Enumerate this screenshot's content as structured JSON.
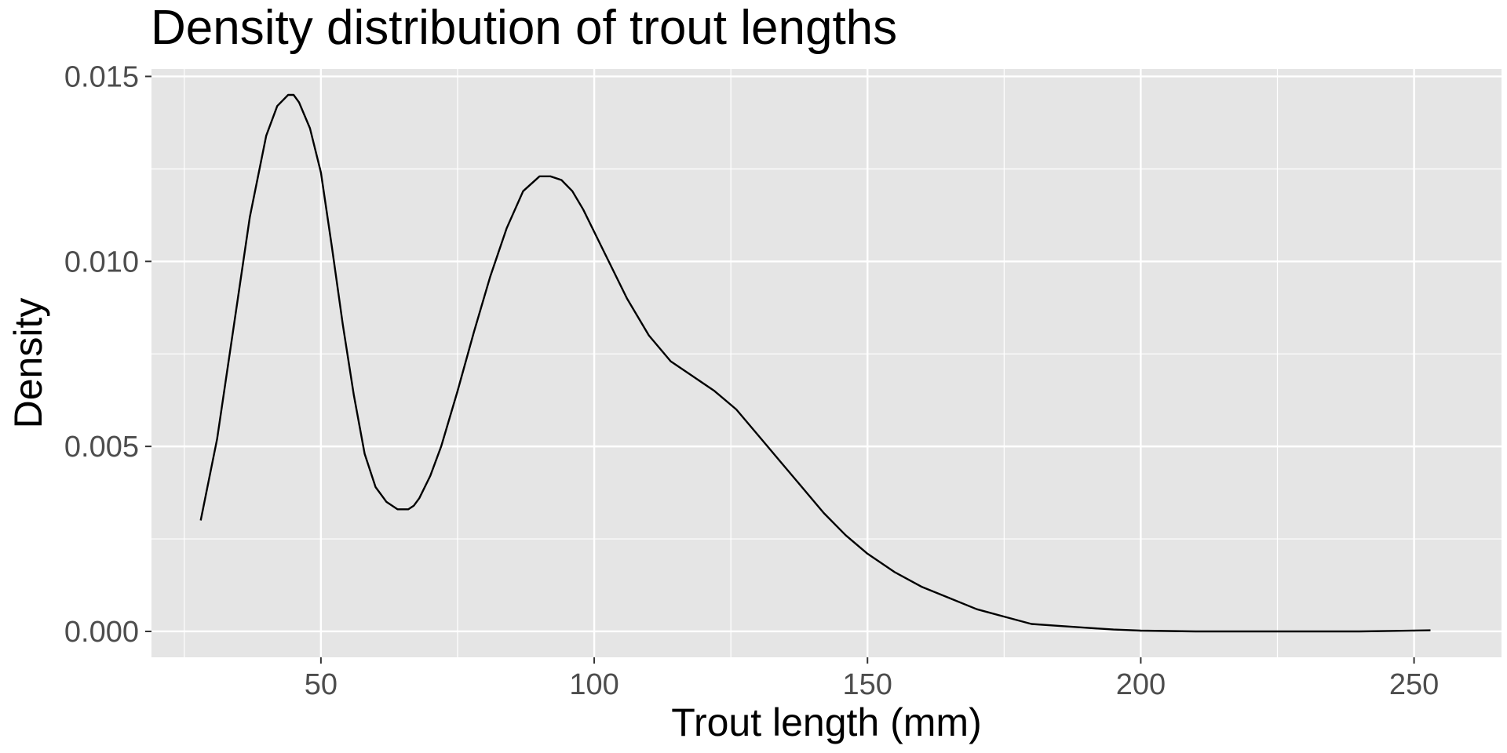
{
  "chart_data": {
    "type": "line",
    "title": "Density distribution of trout lengths",
    "xlabel": "Trout length (mm)",
    "ylabel": "Density",
    "xlim": [
      19,
      266
    ],
    "ylim": [
      -0.0007,
      0.0152
    ],
    "x_ticks": [
      50,
      100,
      150,
      200,
      250
    ],
    "x_tick_labels": [
      "50",
      "100",
      "150",
      "200",
      "250"
    ],
    "y_ticks": [
      0.0,
      0.005,
      0.01,
      0.015
    ],
    "y_tick_labels": [
      "0.000",
      "0.005",
      "0.010",
      "0.015"
    ],
    "grid": true,
    "series": [
      {
        "x": [
          28,
          31,
          34,
          37,
          40,
          42,
          44,
          45,
          46,
          48,
          50,
          52,
          54,
          56,
          58,
          60,
          62,
          64,
          66,
          67,
          68,
          70,
          72,
          75,
          78,
          81,
          84,
          87,
          90,
          92,
          94,
          96,
          98,
          100,
          103,
          106,
          110,
          114,
          118,
          122,
          126,
          130,
          134,
          138,
          142,
          146,
          150,
          155,
          160,
          165,
          170,
          175,
          180,
          185,
          190,
          195,
          200,
          210,
          220,
          230,
          240,
          253
        ],
        "y": [
          0.003,
          0.0052,
          0.0082,
          0.0112,
          0.0134,
          0.0142,
          0.0145,
          0.0145,
          0.0143,
          0.0136,
          0.0124,
          0.0104,
          0.0083,
          0.0064,
          0.0048,
          0.0039,
          0.0035,
          0.0033,
          0.0033,
          0.0034,
          0.0036,
          0.0042,
          0.005,
          0.0065,
          0.0081,
          0.0096,
          0.0109,
          0.0119,
          0.0123,
          0.0123,
          0.0122,
          0.0119,
          0.0114,
          0.0108,
          0.0099,
          0.009,
          0.008,
          0.0073,
          0.0069,
          0.0065,
          0.006,
          0.0053,
          0.0046,
          0.0039,
          0.0032,
          0.0026,
          0.0021,
          0.0016,
          0.0012,
          0.0009,
          0.0006,
          0.0004,
          0.0002,
          0.00015,
          0.0001,
          5e-05,
          2e-05,
          0.0,
          0.0,
          0.0,
          0.0,
          3e-05
        ]
      }
    ]
  },
  "colors": {
    "panel": "#e5e5e5",
    "grid": "#ffffff",
    "line": "#000000",
    "tick_text": "#4d4d4d"
  }
}
